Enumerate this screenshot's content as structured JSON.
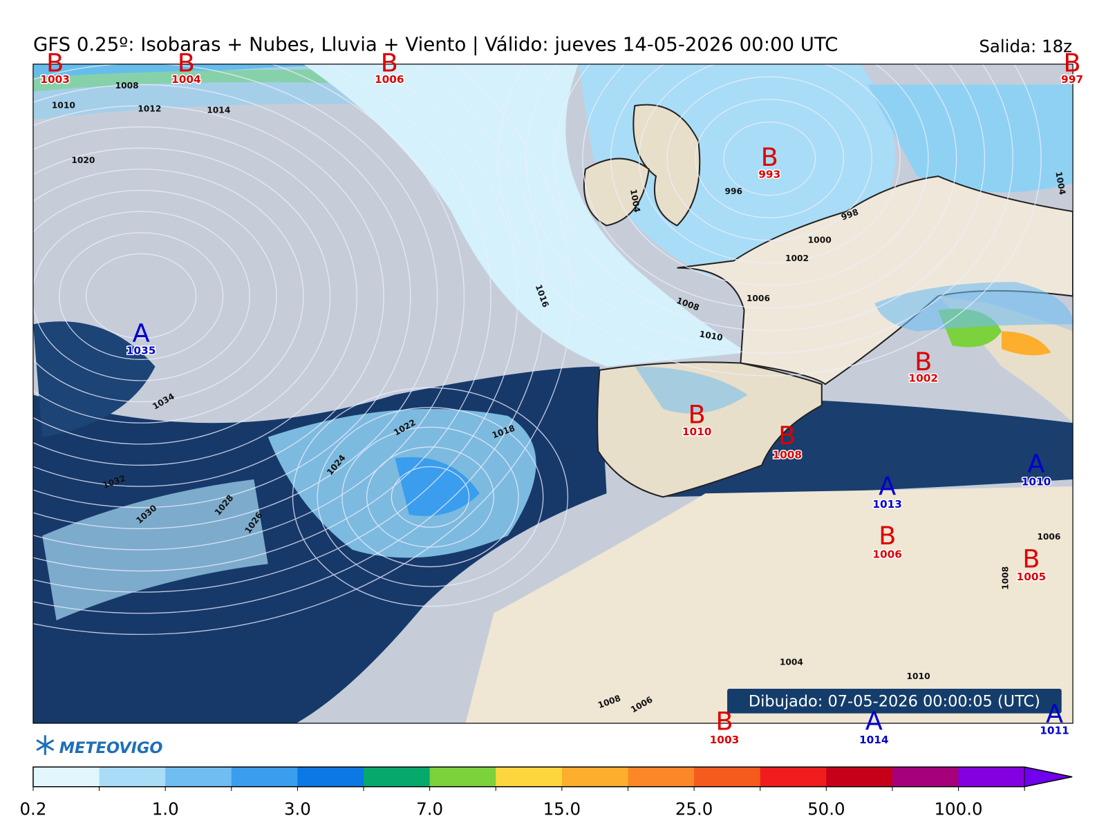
{
  "header": {
    "title": "GFS 0.25º: Isobaras + Nubes, Lluvia + Viento | Válido: jueves 14-05-2026 00:00 UTC",
    "run": "Salida: 18z"
  },
  "pressure_centers": [
    {
      "letter": "B",
      "value": 1003
    },
    {
      "letter": "B",
      "value": 1004
    },
    {
      "letter": "B",
      "value": 1006
    },
    {
      "letter": "B",
      "value": 997
    },
    {
      "letter": "B",
      "value": 993
    },
    {
      "letter": "A",
      "value": 1035
    },
    {
      "letter": "B",
      "value": 1002
    },
    {
      "letter": "B",
      "value": 1010
    },
    {
      "letter": "B",
      "value": 1008
    },
    {
      "letter": "A",
      "value": 1010
    },
    {
      "letter": "A",
      "value": 1013
    },
    {
      "letter": "B",
      "value": 1006
    },
    {
      "letter": "B",
      "value": 1005
    },
    {
      "letter": "B",
      "value": 1003
    },
    {
      "letter": "A",
      "value": 1014
    },
    {
      "letter": "A",
      "value": 1011
    }
  ],
  "isobar_labels": [
    1008,
    1010,
    1012,
    1014,
    1020,
    1016,
    1034,
    1032,
    1030,
    1028,
    1026,
    1024,
    1022,
    1018,
    996,
    998,
    1000,
    1002,
    1006,
    1008,
    1010,
    1004,
    1010,
    1008,
    1006,
    1006,
    1008,
    1004,
    1004
  ],
  "drawn_at": "Dibujado: 07-05-2026 00:00:05 (UTC)",
  "logo": "METEOVIGO",
  "colorbar": {
    "colors": [
      "#e1f7fd",
      "#a9dcf6",
      "#6fbdf1",
      "#3a9ded",
      "#0b78e6",
      "#07a86b",
      "#7bd23c",
      "#fcd63c",
      "#fcae2c",
      "#fb8726",
      "#f45b1d",
      "#ef1d1d",
      "#c70019",
      "#a6007b",
      "#8400e0",
      "#7000ee"
    ],
    "labels": [
      "0.2",
      "1.0",
      "3.0",
      "7.0",
      "15.0",
      "25.0",
      "50.0",
      "100.0"
    ]
  }
}
